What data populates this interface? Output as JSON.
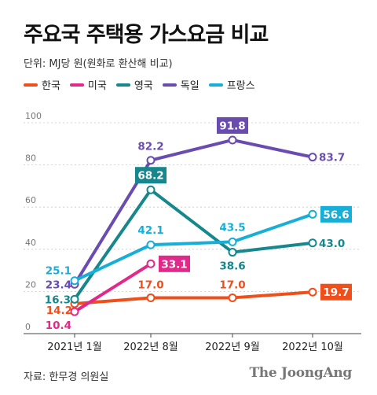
{
  "header": {
    "title": "주요국 주택용 가스요금 비교",
    "unit": "단위: MJ당 원(원화로 환산해 비교)"
  },
  "footer": {
    "source": "자료: 한무경 의원실",
    "brand": "The JoongAng"
  },
  "chart_data": {
    "type": "line",
    "categories": [
      "2021년 1월",
      "2022년 8월",
      "2022년 9월",
      "2022년 10월"
    ],
    "ylim": [
      0,
      100
    ],
    "yticks": [
      0,
      20,
      40,
      60,
      80,
      100
    ],
    "grid": true,
    "legend_position": "top-left",
    "series": [
      {
        "name": "한국",
        "color": "#f04e1a",
        "values": [
          14.2,
          17.0,
          17.0,
          19.7
        ],
        "labels": [
          "14.2",
          "17.0",
          "17.0",
          "19.7"
        ],
        "boxed_last": true
      },
      {
        "name": "미국",
        "color": "#e0298a",
        "values": [
          10.4,
          33.1,
          null,
          null
        ],
        "labels": [
          "10.4",
          "33.1",
          "",
          ""
        ],
        "boxed_last": true
      },
      {
        "name": "영국",
        "color": "#16878c",
        "values": [
          16.3,
          68.2,
          38.6,
          43.0
        ],
        "labels": [
          "16.3",
          "68.2",
          "38.6",
          "43.0"
        ],
        "boxed_index": 1
      },
      {
        "name": "독일",
        "color": "#6a4cb0",
        "values": [
          23.4,
          82.2,
          91.8,
          83.7
        ],
        "labels": [
          "23.4",
          "82.2",
          "91.8",
          "83.7"
        ],
        "boxed_index": 2
      },
      {
        "name": "프랑스",
        "color": "#17aed8",
        "values": [
          25.1,
          42.1,
          43.5,
          56.6
        ],
        "labels": [
          "25.1",
          "42.1",
          "43.5",
          "56.6"
        ],
        "boxed_last": true
      }
    ]
  }
}
